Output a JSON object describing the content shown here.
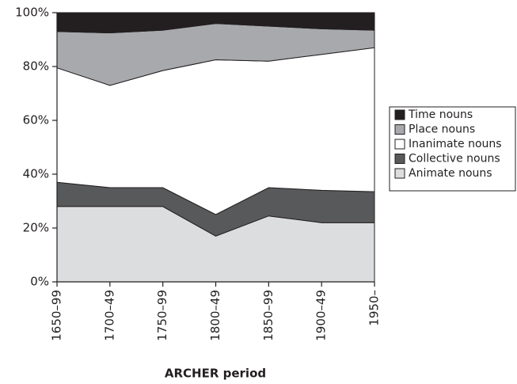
{
  "chart_data": {
    "type": "stacked-area",
    "x_label": "ARCHER period",
    "categories": [
      "1650–99",
      "1700–49",
      "1750–99",
      "1800–49",
      "1850–99",
      "1900–49",
      "1950–"
    ],
    "series": [
      {
        "name": "Animate nouns",
        "color": "#dcddde",
        "values": [
          28,
          28,
          28,
          17,
          24.5,
          22,
          22
        ]
      },
      {
        "name": "Collective nouns",
        "color": "#58595b",
        "values": [
          9,
          7,
          7,
          8,
          10.5,
          12,
          11.5
        ]
      },
      {
        "name": "Inanimate nouns",
        "color": "#ffffff",
        "values": [
          42.5,
          38,
          43.5,
          57.5,
          47,
          50.5,
          53.5
        ]
      },
      {
        "name": "Place nouns",
        "color": "#a7a9ac",
        "values": [
          13.5,
          19.5,
          15,
          13.5,
          13,
          9.5,
          6.5
        ]
      },
      {
        "name": "Time nouns",
        "color": "#231f20",
        "values": [
          7,
          7.5,
          6.5,
          4,
          5,
          6,
          6.5
        ]
      }
    ],
    "ylim": [
      0,
      100
    ],
    "yticks": [
      {
        "value": 0,
        "label": "0%"
      },
      {
        "value": 20,
        "label": "20%"
      },
      {
        "value": 40,
        "label": "40%"
      },
      {
        "value": 60,
        "label": "60%"
      },
      {
        "value": 80,
        "label": "80%"
      },
      {
        "value": 100,
        "label": "100%"
      }
    ],
    "legend": "right"
  }
}
